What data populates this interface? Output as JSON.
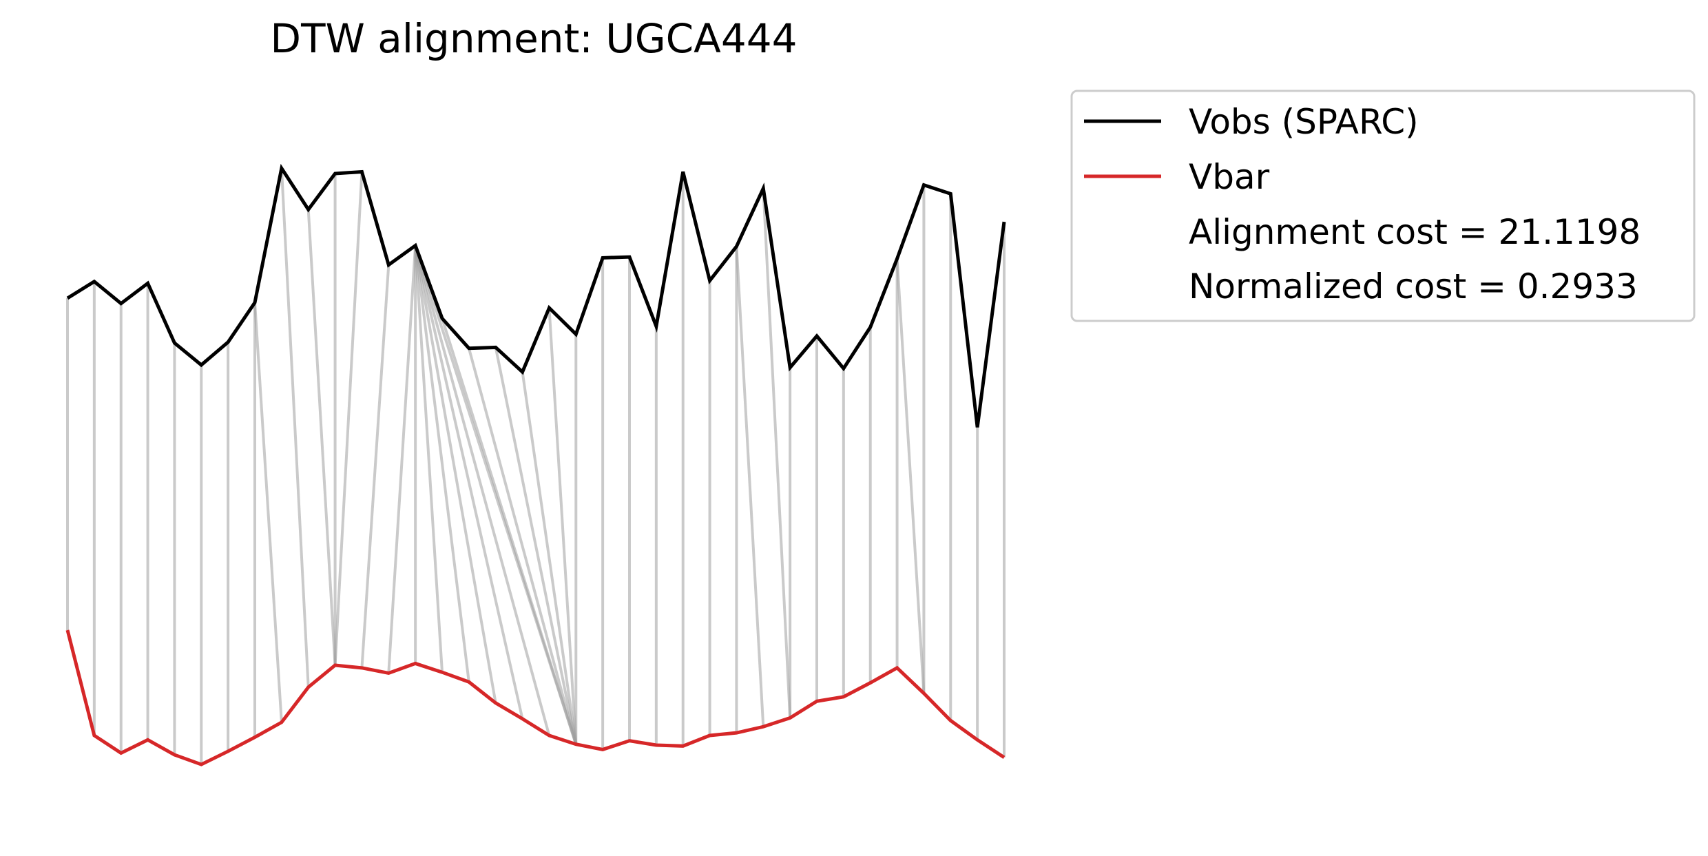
{
  "chart_data": {
    "type": "line",
    "title": "DTW alignment: UGCA444",
    "xlabel": "",
    "ylabel": "",
    "axes_visible": false,
    "x": [
      0,
      1,
      2,
      3,
      4,
      5,
      6,
      7,
      8,
      9,
      10,
      11,
      12,
      13,
      14,
      15,
      16,
      17,
      18,
      19,
      20,
      21,
      22,
      23,
      24,
      25,
      26,
      27,
      28,
      29,
      30,
      31,
      32,
      33,
      34,
      35
    ],
    "series": [
      {
        "name": "Vobs (SPARC)",
        "color": "#000000",
        "values": [
          5.78,
          5.97,
          5.72,
          5.95,
          5.27,
          5.02,
          5.28,
          5.73,
          7.26,
          6.79,
          7.2,
          7.22,
          6.16,
          6.38,
          5.55,
          5.21,
          5.22,
          4.94,
          5.67,
          5.37,
          6.24,
          6.25,
          5.46,
          7.22,
          5.98,
          6.37,
          7.03,
          4.99,
          5.35,
          4.98,
          5.45,
          6.23,
          7.07,
          6.97,
          4.31,
          6.65
        ]
      },
      {
        "name": "Vbar",
        "color": "#d62728",
        "values": [
          2.0,
          0.8,
          0.6,
          0.75,
          0.58,
          0.47,
          0.62,
          0.78,
          0.95,
          1.35,
          1.6,
          1.57,
          1.51,
          1.62,
          1.52,
          1.41,
          1.17,
          0.99,
          0.8,
          0.7,
          0.64,
          0.74,
          0.69,
          0.68,
          0.8,
          0.83,
          0.9,
          1.0,
          1.19,
          1.24,
          1.4,
          1.57,
          1.28,
          0.97,
          0.75,
          0.55
        ]
      }
    ],
    "alignment_pairs": [
      [
        0,
        0
      ],
      [
        1,
        1
      ],
      [
        2,
        2
      ],
      [
        3,
        3
      ],
      [
        4,
        4
      ],
      [
        5,
        5
      ],
      [
        6,
        6
      ],
      [
        7,
        7
      ],
      [
        7,
        8
      ],
      [
        8,
        9
      ],
      [
        9,
        10
      ],
      [
        10,
        10
      ],
      [
        11,
        10
      ],
      [
        12,
        11
      ],
      [
        13,
        12
      ],
      [
        13,
        13
      ],
      [
        13,
        14
      ],
      [
        13,
        15
      ],
      [
        13,
        16
      ],
      [
        13,
        17
      ],
      [
        13,
        18
      ],
      [
        13,
        19
      ],
      [
        14,
        19
      ],
      [
        15,
        19
      ],
      [
        16,
        19
      ],
      [
        17,
        19
      ],
      [
        18,
        19
      ],
      [
        19,
        19
      ],
      [
        20,
        20
      ],
      [
        21,
        21
      ],
      [
        22,
        22
      ],
      [
        23,
        23
      ],
      [
        24,
        24
      ],
      [
        25,
        25
      ],
      [
        25,
        26
      ],
      [
        26,
        27
      ],
      [
        27,
        27
      ],
      [
        28,
        28
      ],
      [
        29,
        29
      ],
      [
        30,
        30
      ],
      [
        31,
        31
      ],
      [
        31,
        32
      ],
      [
        32,
        32
      ],
      [
        33,
        33
      ],
      [
        34,
        34
      ],
      [
        35,
        35
      ]
    ],
    "ylim": [
      0,
      8
    ],
    "legend_position": "upper-right-outside",
    "legend": {
      "entries": [
        "Vobs (SPARC)",
        "Vbar"
      ],
      "notes": [
        "Alignment cost = 21.1198",
        "Normalized cost = 0.2933"
      ]
    }
  }
}
